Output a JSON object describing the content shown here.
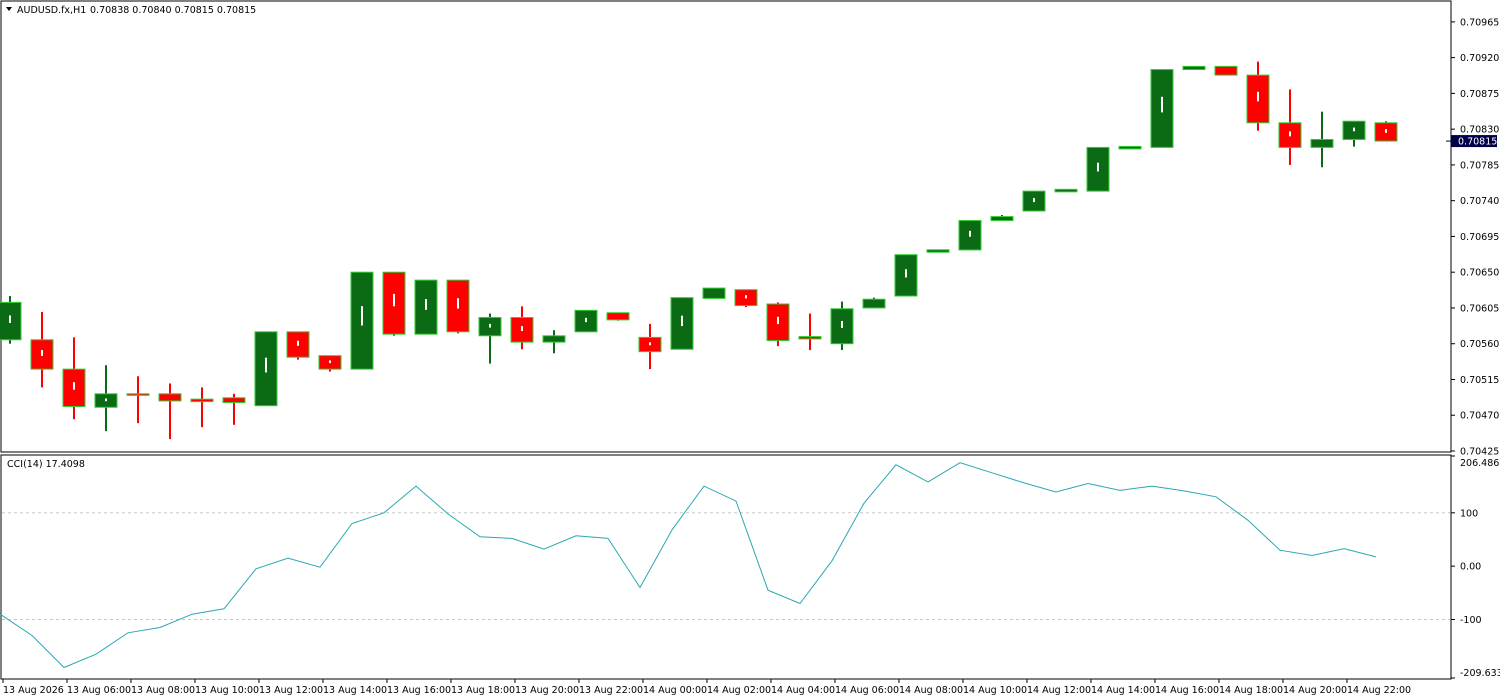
{
  "header": {
    "symbol_label": "AUDUSD.fx,H1",
    "ohlc_text": "0.70838 0.70840 0.70815 0.70815"
  },
  "cci_header": {
    "label": "CCI(14) 17.4098"
  },
  "current_price_tag": "0.70815",
  "colors": {
    "bull_body": "#0b6b14",
    "bear_body": "#ff0000",
    "bull_outline": "#33cc33",
    "bear_outline": "#33cc33",
    "bull_wick": "#0b6b14",
    "bear_wick": "#ff0000",
    "cci_line": "#2aa8b3",
    "grid": "#c8c8c8",
    "frame": "#000000",
    "price_tag_bg": "#00004a"
  },
  "chart_data": [
    {
      "type": "candlestick",
      "symbol": "AUDUSD.fx",
      "timeframe": "H1",
      "ylim": [
        0.70425,
        0.7099
      ],
      "y_ticks": [
        "0.70965",
        "0.70920",
        "0.70875",
        "0.70830",
        "0.70785",
        "0.70740",
        "0.70695",
        "0.70650",
        "0.70605",
        "0.70560",
        "0.70515",
        "0.70470",
        "0.70425"
      ],
      "x_labels": [
        "13 Aug 2026",
        "13 Aug 06:00",
        "13 Aug 08:00",
        "13 Aug 10:00",
        "13 Aug 12:00",
        "13 Aug 14:00",
        "13 Aug 16:00",
        "13 Aug 18:00",
        "13 Aug 20:00",
        "13 Aug 22:00",
        "14 Aug 00:00",
        "14 Aug 02:00",
        "14 Aug 04:00",
        "14 Aug 06:00",
        "14 Aug 08:00",
        "14 Aug 10:00",
        "14 Aug 12:00",
        "14 Aug 14:00",
        "14 Aug 16:00",
        "14 Aug 18:00",
        "14 Aug 20:00",
        "14 Aug 22:00"
      ],
      "candles": [
        {
          "o": 0.70565,
          "h": 0.7062,
          "l": 0.7056,
          "c": 0.70612
        },
        {
          "o": 0.70565,
          "h": 0.706,
          "l": 0.70505,
          "c": 0.70528
        },
        {
          "o": 0.70528,
          "h": 0.70568,
          "l": 0.70465,
          "c": 0.70481
        },
        {
          "o": 0.7048,
          "h": 0.70533,
          "l": 0.7045,
          "c": 0.70497
        },
        {
          "o": 0.70497,
          "h": 0.70519,
          "l": 0.7046,
          "c": 0.70495
        },
        {
          "o": 0.70497,
          "h": 0.7051,
          "l": 0.7044,
          "c": 0.70488
        },
        {
          "o": 0.70489,
          "h": 0.70505,
          "l": 0.70455,
          "c": 0.70488
        },
        {
          "o": 0.70492,
          "h": 0.70497,
          "l": 0.70458,
          "c": 0.70486
        },
        {
          "o": 0.70482,
          "h": 0.70575,
          "l": 0.70482,
          "c": 0.70575
        },
        {
          "o": 0.70575,
          "h": 0.70575,
          "l": 0.7054,
          "c": 0.70543
        },
        {
          "o": 0.70545,
          "h": 0.70545,
          "l": 0.70525,
          "c": 0.70528
        },
        {
          "o": 0.70528,
          "h": 0.7065,
          "l": 0.70528,
          "c": 0.7065
        },
        {
          "o": 0.7065,
          "h": 0.7065,
          "l": 0.7057,
          "c": 0.70572
        },
        {
          "o": 0.70572,
          "h": 0.7064,
          "l": 0.70572,
          "c": 0.7064
        },
        {
          "o": 0.7064,
          "h": 0.7064,
          "l": 0.70573,
          "c": 0.70575
        },
        {
          "o": 0.7057,
          "h": 0.70598,
          "l": 0.70535,
          "c": 0.70593
        },
        {
          "o": 0.70593,
          "h": 0.70607,
          "l": 0.70553,
          "c": 0.70562
        },
        {
          "o": 0.70562,
          "h": 0.70577,
          "l": 0.70548,
          "c": 0.7057
        },
        {
          "o": 0.70575,
          "h": 0.70602,
          "l": 0.70575,
          "c": 0.70602
        },
        {
          "o": 0.70599,
          "h": 0.70599,
          "l": 0.70589,
          "c": 0.7059
        },
        {
          "o": 0.70568,
          "h": 0.70585,
          "l": 0.70528,
          "c": 0.7055
        },
        {
          "o": 0.70553,
          "h": 0.70618,
          "l": 0.70553,
          "c": 0.70618
        },
        {
          "o": 0.70617,
          "h": 0.7063,
          "l": 0.70617,
          "c": 0.7063
        },
        {
          "o": 0.70628,
          "h": 0.70628,
          "l": 0.70606,
          "c": 0.70608
        },
        {
          "o": 0.7061,
          "h": 0.70612,
          "l": 0.70557,
          "c": 0.70564
        },
        {
          "o": 0.70569,
          "h": 0.70598,
          "l": 0.70552,
          "c": 0.70566
        },
        {
          "o": 0.7056,
          "h": 0.70613,
          "l": 0.70552,
          "c": 0.70604
        },
        {
          "o": 0.70605,
          "h": 0.70618,
          "l": 0.70605,
          "c": 0.70616
        },
        {
          "o": 0.7062,
          "h": 0.70672,
          "l": 0.7062,
          "c": 0.70672
        },
        {
          "o": 0.70676,
          "h": 0.70677,
          "l": 0.70675,
          "c": 0.70677
        },
        {
          "o": 0.70678,
          "h": 0.70715,
          "l": 0.70678,
          "c": 0.70715
        },
        {
          "o": 0.70715,
          "h": 0.70722,
          "l": 0.70715,
          "c": 0.7072
        },
        {
          "o": 0.70727,
          "h": 0.70752,
          "l": 0.70727,
          "c": 0.70752
        },
        {
          "o": 0.70752,
          "h": 0.70753,
          "l": 0.70751,
          "c": 0.70753
        },
        {
          "o": 0.70752,
          "h": 0.70807,
          "l": 0.70752,
          "c": 0.70807
        },
        {
          "o": 0.70806,
          "h": 0.70807,
          "l": 0.70805,
          "c": 0.70807
        },
        {
          "o": 0.70807,
          "h": 0.70905,
          "l": 0.70807,
          "c": 0.70905
        },
        {
          "o": 0.70905,
          "h": 0.70909,
          "l": 0.70905,
          "c": 0.70909
        },
        {
          "o": 0.70909,
          "h": 0.70909,
          "l": 0.70898,
          "c": 0.70898
        },
        {
          "o": 0.70898,
          "h": 0.70915,
          "l": 0.70828,
          "c": 0.70838
        },
        {
          "o": 0.70838,
          "h": 0.7088,
          "l": 0.70785,
          "c": 0.70807
        },
        {
          "o": 0.70807,
          "h": 0.70852,
          "l": 0.70782,
          "c": 0.70817
        },
        {
          "o": 0.70817,
          "h": 0.7084,
          "l": 0.70808,
          "c": 0.7084
        },
        {
          "o": 0.70838,
          "h": 0.7084,
          "l": 0.70815,
          "c": 0.70815
        }
      ]
    },
    {
      "type": "line",
      "title": "CCI(14) 17.4098",
      "ylim": [
        -209.6338,
        206.4863
      ],
      "y_ticks": [
        "206.4863",
        "100",
        "0.00",
        "-100",
        "-209.6338"
      ],
      "grid_levels": [
        100,
        -100
      ],
      "values": [
        -80,
        -130,
        -190,
        -165,
        -125,
        -115,
        -90,
        -80,
        -5,
        15,
        -2,
        80,
        100,
        150,
        98,
        55,
        52,
        32,
        57,
        52,
        -40,
        68,
        150,
        122,
        -45,
        -70,
        10,
        118,
        190,
        158,
        194,
        175,
        156,
        139,
        155,
        142,
        150,
        141,
        130,
        86,
        30,
        20,
        33,
        17.41
      ]
    }
  ]
}
